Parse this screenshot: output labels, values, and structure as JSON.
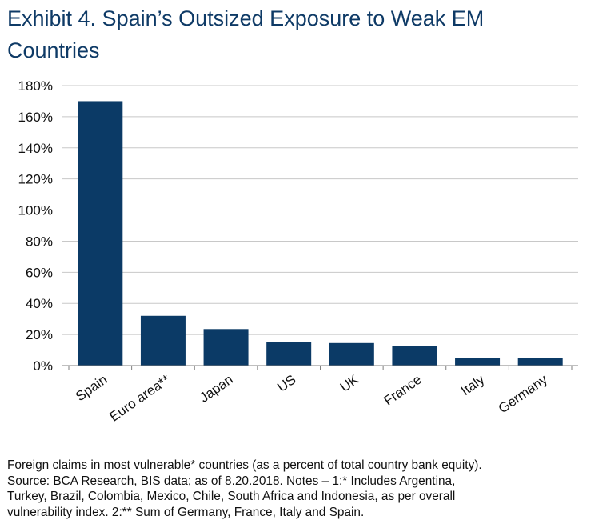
{
  "title_lines": [
    "Exhibit 4. Spain’s Outsized Exposure to Weak EM",
    "Countries"
  ],
  "chart_data": {
    "type": "bar",
    "categories": [
      "Spain",
      "Euro area**",
      "Japan",
      "US",
      "UK",
      "France",
      "Italy",
      "Germany"
    ],
    "values": [
      170,
      32,
      23.5,
      15,
      14.5,
      12.5,
      5,
      5
    ],
    "yticks": [
      "0%",
      "20%",
      "40%",
      "60%",
      "80%",
      "100%",
      "120%",
      "140%",
      "160%",
      "180%"
    ],
    "ylim": [
      0,
      180
    ],
    "ytick_step": 20,
    "bar_color": "#0b3a66",
    "grid": true,
    "xlabel": "",
    "ylabel": ""
  },
  "footnote_lines": [
    "Foreign claims in most vulnerable* countries (as a percent of total country bank equity).",
    "Source: BCA Research, BIS data; as of 8.20.2018. Notes – 1:* Includes Argentina,",
    "Turkey, Brazil, Colombia, Mexico, Chile, South Africa and Indonesia, as per overall",
    "vulnerability index. 2:** Sum of Germany, France, Italy and Spain."
  ]
}
